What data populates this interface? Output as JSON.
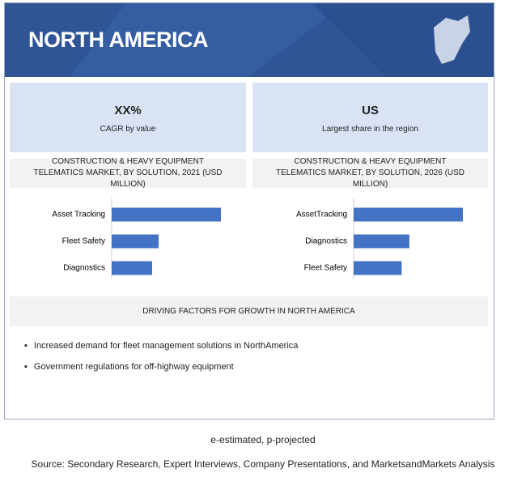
{
  "header": {
    "title": "NORTH AMERICA"
  },
  "stats": [
    {
      "value": "XX%",
      "label": "CAGR by value"
    },
    {
      "value": "US",
      "label": "Largest share in the region"
    }
  ],
  "charts": [
    {
      "type": "bar",
      "title": "CONSTRUCTION & HEAVY EQUIPMENT TELEMATICS MARKET, BY SOLUTION, 2021 (USD MILLION)",
      "categories": [
        "Asset Tracking",
        "Fleet Safety",
        "Diagnostics"
      ],
      "values": [
        100,
        43,
        37
      ],
      "color": "#4472c4"
    },
    {
      "type": "bar",
      "title": "CONSTRUCTION & HEAVY EQUIPMENT TELEMATICS MARKET, BY SOLUTION, 2026 (USD MILLION)",
      "categories": [
        "AssetTracking",
        "Diagnostics",
        "Fleet Safety"
      ],
      "values": [
        100,
        51,
        44
      ],
      "color": "#4472c4"
    }
  ],
  "driving_factors": {
    "title": "DRIVING FACTORS FOR GROWTH IN NORTH AMERICA",
    "items": [
      "Increased demand for fleet management solutions in NorthAmerica",
      "Government regulations for off-highway equipment"
    ]
  },
  "footnote": "e-estimated, p-projected",
  "source": "Source: Secondary Research, Expert Interviews, Company Presentations, and MarketsandMarkets Analysis"
}
